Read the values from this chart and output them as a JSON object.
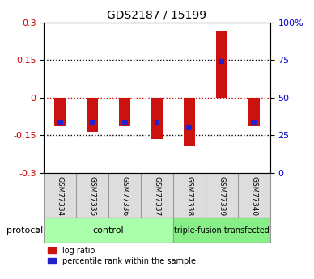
{
  "title": "GDS2187 / 15199",
  "samples": [
    "GSM77334",
    "GSM77335",
    "GSM77336",
    "GSM77337",
    "GSM77338",
    "GSM77339",
    "GSM77340"
  ],
  "log_ratios": [
    -0.115,
    -0.135,
    -0.115,
    -0.165,
    -0.195,
    0.265,
    -0.115
  ],
  "percentile_ranks": [
    -0.1,
    -0.1,
    -0.1,
    -0.1,
    -0.12,
    0.145,
    -0.1
  ],
  "bar_width": 0.35,
  "ylim": [
    -0.3,
    0.3
  ],
  "yticks_left": [
    -0.3,
    -0.15,
    0,
    0.15,
    0.3
  ],
  "yticks_right": [
    0,
    25,
    50,
    75,
    100
  ],
  "left_color": "#cc0000",
  "right_color": "#0000cc",
  "bar_color_red": "#cc1111",
  "bar_color_blue": "#2222cc",
  "groups": [
    {
      "label": "control",
      "start": 0,
      "end": 3,
      "color": "#aaffaa"
    },
    {
      "label": "triple-fusion transfected",
      "start": 4,
      "end": 6,
      "color": "#88ee88"
    }
  ],
  "protocol_label": "protocol",
  "legend_entries": [
    "log ratio",
    "percentile rank within the sample"
  ],
  "grid_color": "#000000",
  "zero_line_color": "#cc0000",
  "dotted_line_color": "#000000",
  "bg_color": "#ffffff",
  "plot_bg": "#ffffff",
  "tick_label_color_left": "#cc0000",
  "tick_label_color_right": "#0000cc"
}
